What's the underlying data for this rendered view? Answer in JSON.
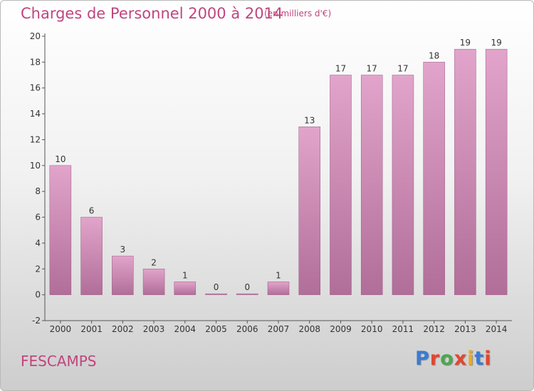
{
  "header": {
    "title": "Charges de Personnel 2000 à 2014",
    "unit": "(en milliers d'€)"
  },
  "footer": {
    "commune": "FESCAMPS",
    "brand": "Proxiti",
    "brand_colors": [
      "#3a7bd5",
      "#e2472f",
      "#4aa84f",
      "#e2472f",
      "#f2a81d",
      "#3a7bd5",
      "#e2472f"
    ]
  },
  "colors": {
    "text": "#c0457e",
    "bar_top": "#e2a4cb",
    "bar_bottom": "#b06e98",
    "axis": "#555555"
  },
  "chart_data": {
    "type": "bar",
    "title": "Charges de Personnel 2000 à 2014",
    "xlabel": "",
    "ylabel": "",
    "categories": [
      "2000",
      "2001",
      "2002",
      "2003",
      "2004",
      "2005",
      "2006",
      "2007",
      "2008",
      "2009",
      "2010",
      "2011",
      "2012",
      "2013",
      "2014"
    ],
    "values": [
      10,
      6,
      3,
      2,
      1,
      0,
      0,
      1,
      13,
      17,
      17,
      17,
      18,
      19,
      19
    ],
    "data_labels": [
      "10",
      "6",
      "3",
      "2",
      "1",
      "0",
      "0",
      "1",
      "13",
      "17",
      "17",
      "17",
      "18",
      "19",
      "19"
    ],
    "ylim": [
      -2,
      20
    ],
    "yticks": [
      -2,
      0,
      2,
      4,
      6,
      8,
      10,
      12,
      14,
      16,
      18,
      20
    ],
    "grid": false
  }
}
